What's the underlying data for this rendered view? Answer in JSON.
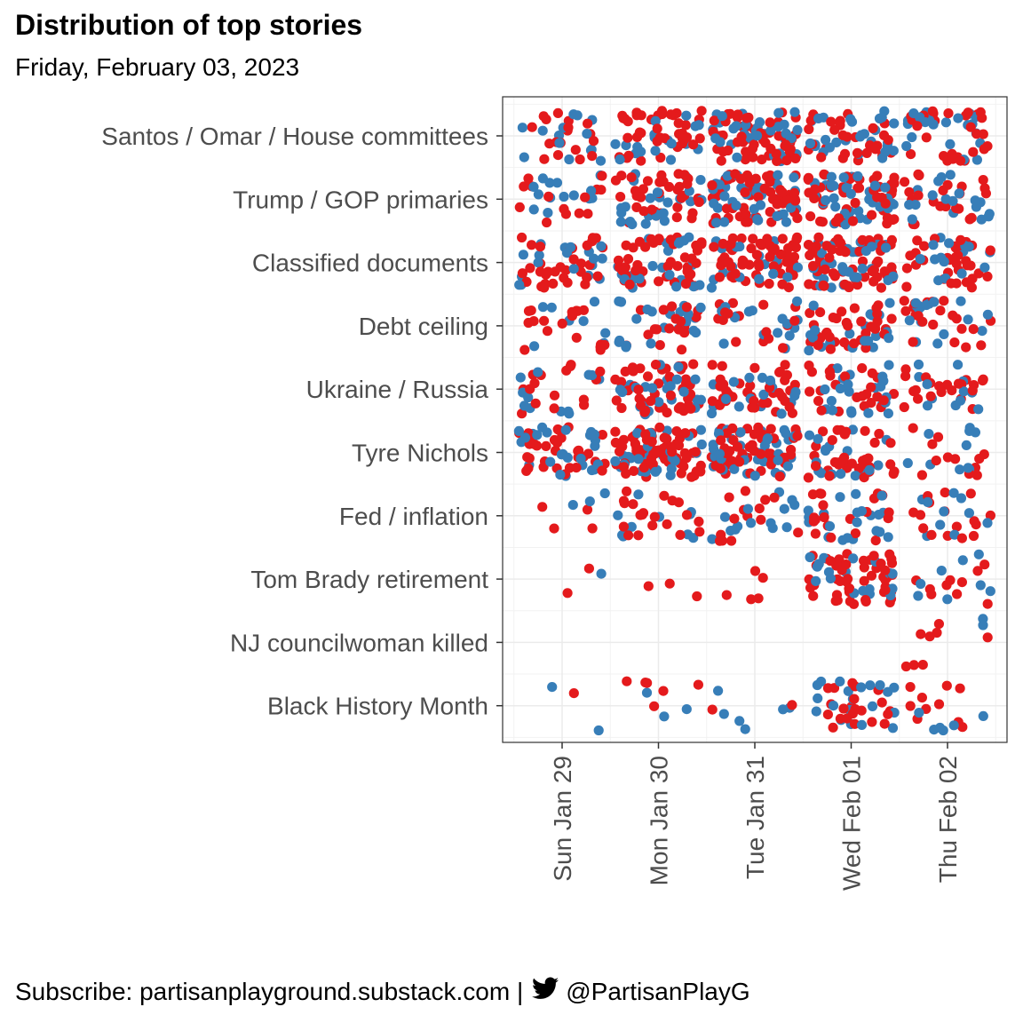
{
  "chart_data": {
    "type": "scatter",
    "title": "Distribution of top stories",
    "subtitle": "Friday, February 03, 2023",
    "x_categories": [
      "Sun Jan 29",
      "Mon Jan 30",
      "Tue Jan 31",
      "Wed Feb 01",
      "Thu Feb 02"
    ],
    "y_categories": [
      "Santos / Omar / House committees",
      "Trump / GOP primaries",
      "Classified documents",
      "Debt ceiling",
      "Ukraine / Russia",
      "Tyre Nichols",
      "Fed / inflation",
      "Tom Brady retirement",
      "NJ councilwoman killed",
      "Black History Month"
    ],
    "grid": true,
    "legend": "none",
    "colors": {
      "blue": "#377EB8",
      "red": "#E41A1C"
    },
    "point_counts": [
      [
        {
          "red": 18,
          "blue": 14
        },
        {
          "red": 40,
          "blue": 18
        },
        {
          "red": 60,
          "blue": 40
        },
        {
          "red": 30,
          "blue": 28
        },
        {
          "red": 28,
          "blue": 22
        }
      ],
      [
        {
          "red": 14,
          "blue": 14
        },
        {
          "red": 35,
          "blue": 25
        },
        {
          "red": 55,
          "blue": 40
        },
        {
          "red": 50,
          "blue": 35
        },
        {
          "red": 22,
          "blue": 18
        }
      ],
      [
        {
          "red": 35,
          "blue": 18
        },
        {
          "red": 45,
          "blue": 25
        },
        {
          "red": 55,
          "blue": 20
        },
        {
          "red": 60,
          "blue": 30
        },
        {
          "red": 35,
          "blue": 15
        }
      ],
      [
        {
          "red": 18,
          "blue": 8
        },
        {
          "red": 18,
          "blue": 22
        },
        {
          "red": 16,
          "blue": 16
        },
        {
          "red": 35,
          "blue": 20
        },
        {
          "red": 22,
          "blue": 18
        }
      ],
      [
        {
          "red": 16,
          "blue": 12
        },
        {
          "red": 45,
          "blue": 25
        },
        {
          "red": 40,
          "blue": 18
        },
        {
          "red": 25,
          "blue": 22
        },
        {
          "red": 22,
          "blue": 12
        }
      ],
      [
        {
          "red": 35,
          "blue": 25
        },
        {
          "red": 70,
          "blue": 30
        },
        {
          "red": 50,
          "blue": 40
        },
        {
          "red": 35,
          "blue": 18
        },
        {
          "red": 12,
          "blue": 10
        }
      ],
      [
        {
          "red": 4,
          "blue": 3
        },
        {
          "red": 20,
          "blue": 12
        },
        {
          "red": 14,
          "blue": 14
        },
        {
          "red": 20,
          "blue": 22
        },
        {
          "red": 16,
          "blue": 10
        }
      ],
      [
        {
          "red": 2,
          "blue": 1
        },
        {
          "red": 3,
          "blue": 0
        },
        {
          "red": 5,
          "blue": 0
        },
        {
          "red": 50,
          "blue": 18
        },
        {
          "red": 10,
          "blue": 8
        }
      ],
      [
        {
          "red": 0,
          "blue": 0
        },
        {
          "red": 0,
          "blue": 0
        },
        {
          "red": 0,
          "blue": 0
        },
        {
          "red": 0,
          "blue": 0
        },
        {
          "red": 8,
          "blue": 2
        }
      ],
      [
        {
          "red": 1,
          "blue": 2
        },
        {
          "red": 6,
          "blue": 3
        },
        {
          "red": 2,
          "blue": 6
        },
        {
          "red": 22,
          "blue": 20
        },
        {
          "red": 10,
          "blue": 6
        }
      ]
    ]
  },
  "footer": {
    "text": "Subscribe: partisanplayground.substack.com |",
    "handle": "@PartisanPlayG"
  }
}
